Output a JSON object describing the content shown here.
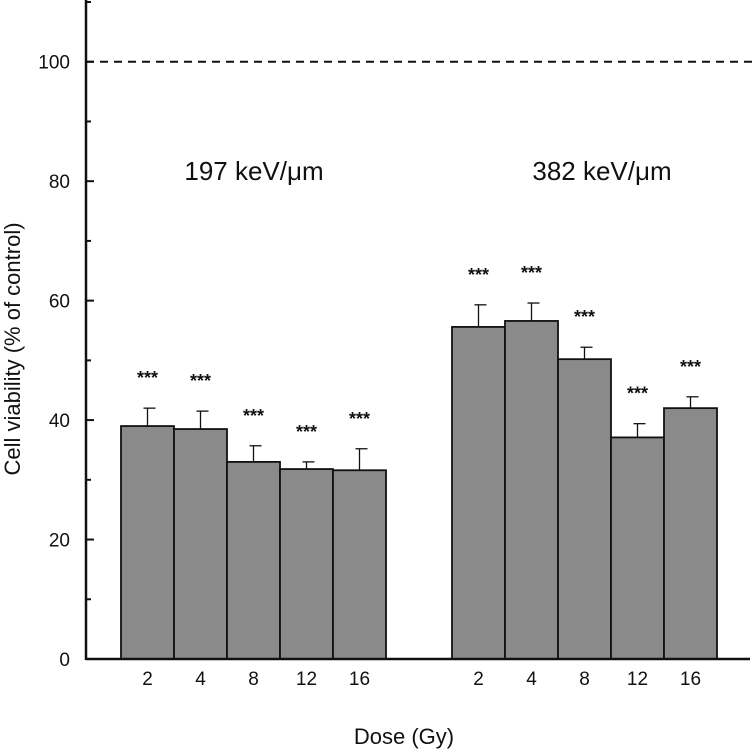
{
  "chart_data": {
    "type": "bar",
    "xlabel": "Dose (Gy)",
    "ylabel": "Cell viability (% of control)",
    "ylim": [
      0,
      110
    ],
    "yticks": [
      0,
      20,
      40,
      60,
      80,
      100
    ],
    "reference_line": {
      "y": 100,
      "style": "dashed"
    },
    "grid": false,
    "bar_color": "#8a8a8a",
    "groups": [
      {
        "label": "197 keV/μm",
        "categories": [
          "2",
          "4",
          "8",
          "12",
          "16"
        ],
        "values": [
          39,
          38.5,
          33,
          31.8,
          31.6
        ],
        "errors": [
          3,
          3,
          2.7,
          1.2,
          3.6
        ],
        "significance": [
          "***",
          "***",
          "***",
          "***",
          "***"
        ]
      },
      {
        "label": "382 keV/μm",
        "categories": [
          "2",
          "4",
          "8",
          "12",
          "16"
        ],
        "values": [
          55.6,
          56.6,
          50.2,
          37.1,
          42
        ],
        "errors": [
          3.7,
          3,
          2,
          2.3,
          1.9
        ],
        "significance": [
          "***",
          "***",
          "***",
          "***",
          "***"
        ]
      }
    ]
  }
}
